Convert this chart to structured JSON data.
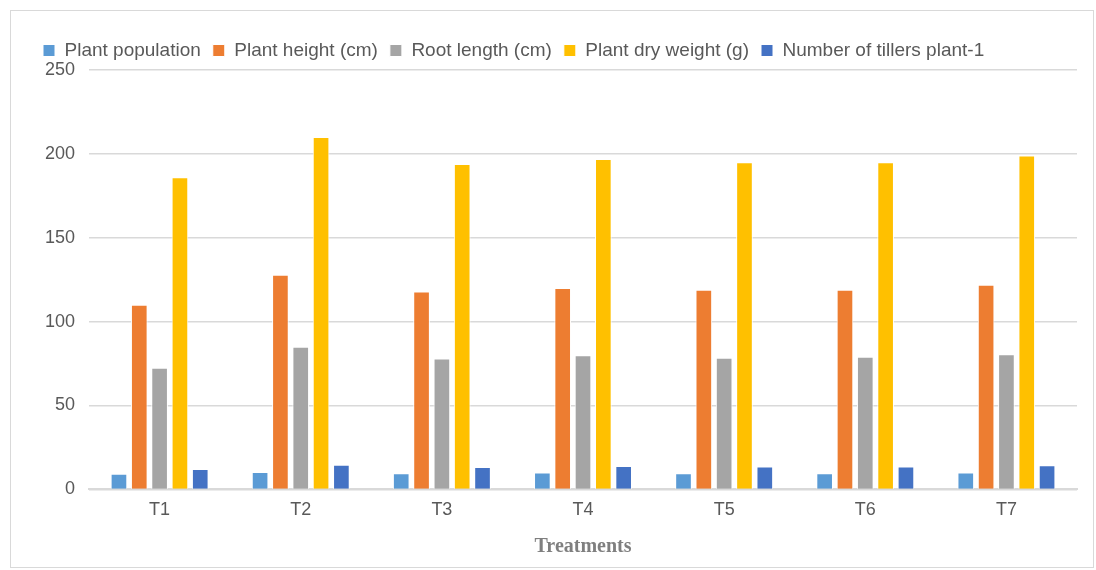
{
  "chart_data": {
    "type": "bar",
    "xlabel": "Treatments",
    "categories": [
      "T1",
      "T2",
      "T3",
      "T4",
      "T5",
      "T6",
      "T7"
    ],
    "series": [
      {
        "name": "Plant population",
        "color": "#5b9bd5",
        "values": [
          9.4,
          10.4,
          9.6,
          10.1,
          9.6,
          9.6,
          10.1
        ]
      },
      {
        "name": "Plant height (cm)",
        "color": "#ed7d31",
        "values": [
          110,
          128,
          118,
          120,
          119,
          119,
          122
        ]
      },
      {
        "name": "Root length (cm)",
        "color": "#a5a5a5",
        "values": [
          72.5,
          85,
          78,
          80,
          78.5,
          79,
          80.5
        ]
      },
      {
        "name": "Plant dry weight (g)",
        "color": "#ffc000",
        "values": [
          186,
          210,
          194,
          197,
          195,
          195,
          199
        ]
      },
      {
        "name": "Number of tillers plant-1",
        "color": "#4472c4",
        "values": [
          12.1,
          14.7,
          13.4,
          13.9,
          13.7,
          13.7,
          14.4
        ]
      }
    ],
    "ylim": [
      0,
      250
    ],
    "yticks": [
      0,
      50,
      100,
      150,
      200,
      250
    ],
    "grid": "y",
    "legend": "top"
  }
}
